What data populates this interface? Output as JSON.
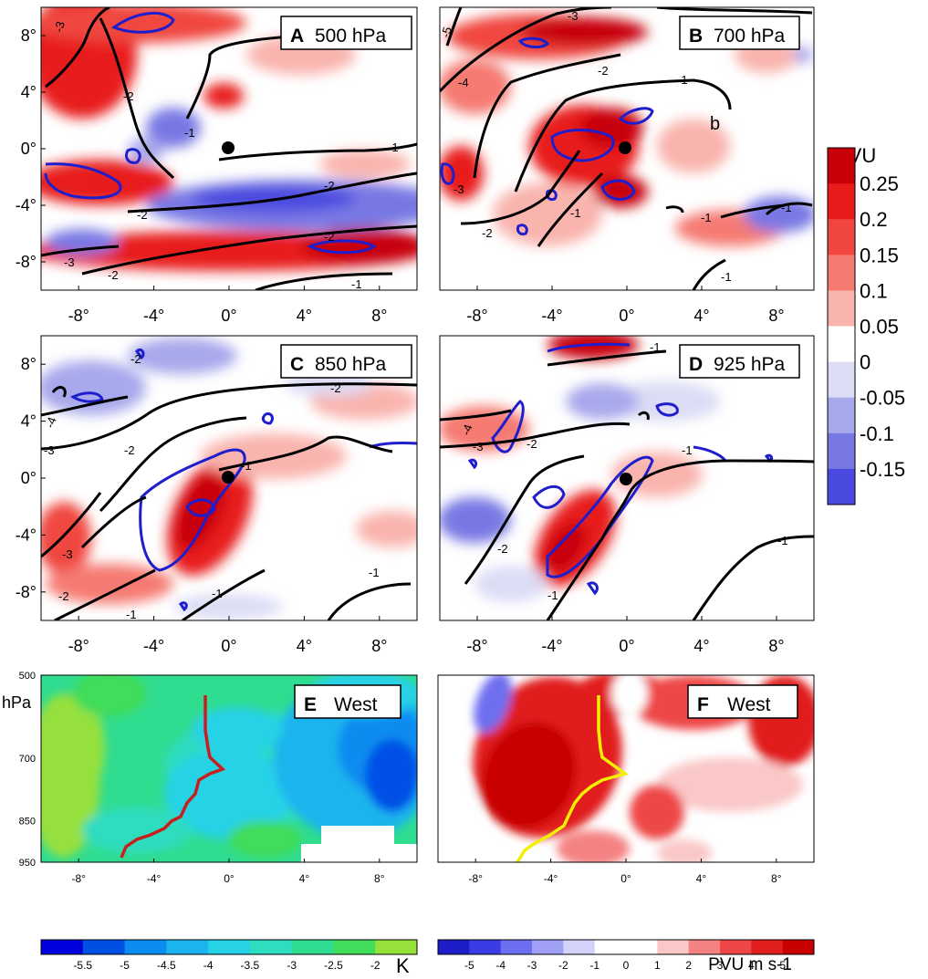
{
  "figure": {
    "panels": [
      {
        "id": "A",
        "letter": "A",
        "level": "500 hPa",
        "extra_label": ""
      },
      {
        "id": "B",
        "letter": "B",
        "level": "700 hPa",
        "extra_label": "b"
      },
      {
        "id": "C",
        "letter": "C",
        "level": "850 hPa",
        "extra_label": ""
      },
      {
        "id": "D",
        "letter": "D",
        "level": "925 hPa",
        "extra_label": ""
      },
      {
        "id": "E",
        "letter": "E",
        "level": "West",
        "extra_label": ""
      },
      {
        "id": "F",
        "letter": "F",
        "level": "West",
        "extra_label": ""
      }
    ],
    "map_x_ticks": [
      "-8°",
      "-4°",
      "0°",
      "4°",
      "8°"
    ],
    "map_y_ticks": [
      "8°",
      "4°",
      "0°",
      "-4°",
      "-8°"
    ],
    "section_x_ticks": [
      "-8°",
      "-4°",
      "0°",
      "4°",
      "8°"
    ],
    "section_y_ticks": [
      "500",
      "700",
      "850",
      "950"
    ],
    "section_y_unit": "hPa",
    "pv_colorbar": {
      "title": "PVU",
      "labels": [
        "0.25",
        "0.2",
        "0.15",
        "0.1",
        "0.05",
        "0",
        "-0.05",
        "-0.1",
        "-0.15"
      ],
      "colors": [
        "#c8000a",
        "#e81a1a",
        "#f0463f",
        "#f57a72",
        "#f9b4ae",
        "#ffffff",
        "#dcdcf5",
        "#a8a8ec",
        "#7878e4",
        "#4a4ae0"
      ]
    },
    "temp_colorbar": {
      "unit": "K",
      "labels": [
        "-5.5",
        "-5",
        "-4.5",
        "-4",
        "-3.5",
        "-3",
        "-2.5",
        "-2"
      ],
      "colors": [
        "#0000dc",
        "#0050e6",
        "#0a8cf0",
        "#1cb4ee",
        "#26d2e6",
        "#2edcc0",
        "#30dc90",
        "#40dc5a",
        "#96e03c"
      ]
    },
    "pvflux_colorbar": {
      "unit": "PVU m s-1",
      "labels": [
        "-5",
        "-4",
        "-3",
        "-2",
        "-1",
        "0",
        "1",
        "2",
        "3",
        "4",
        "5"
      ],
      "colors": [
        "#1e1ec8",
        "#3c3ce6",
        "#6e6ef0",
        "#a0a0f5",
        "#d2d2fa",
        "#ffffff",
        "#ffffff",
        "#fac8c8",
        "#f58282",
        "#ee4646",
        "#e11e1e",
        "#c80000"
      ]
    }
  },
  "chart_data": [
    {
      "type": "heatmap",
      "title": "500 hPa",
      "x_ticks": [
        -8,
        -4,
        0,
        4,
        8
      ],
      "y_ticks": [
        8,
        4,
        0,
        -4,
        -8
      ],
      "xlim": [
        -10,
        10
      ],
      "ylim": [
        -10,
        10
      ],
      "fill": "PV anomaly (PVU)",
      "contour_labels": [
        "-3",
        "-2",
        "-1",
        "-2",
        "-2",
        "-3",
        "-2",
        "-1"
      ]
    },
    {
      "type": "heatmap",
      "title": "700 hPa",
      "x_ticks": [
        -8,
        -4,
        0,
        4,
        8
      ],
      "y_ticks": [
        8,
        4,
        0,
        -4,
        -8
      ],
      "xlim": [
        -10,
        10
      ],
      "ylim": [
        -10,
        10
      ],
      "fill": "PV anomaly (PVU)",
      "contour_labels": [
        "-5",
        "-4",
        "-3",
        "-2",
        "-1",
        "-3",
        "-2",
        "-1",
        "-1",
        "-1",
        "-1"
      ]
    },
    {
      "type": "heatmap",
      "title": "850 hPa",
      "x_ticks": [
        -8,
        -4,
        0,
        4,
        8
      ],
      "y_ticks": [
        8,
        4,
        0,
        -4,
        -8
      ],
      "xlim": [
        -10,
        10
      ],
      "ylim": [
        -10,
        10
      ],
      "fill": "PV anomaly (PVU)",
      "contour_labels": [
        "-2",
        "-4",
        "-3",
        "-2",
        "-1",
        "-3",
        "-2",
        "-1",
        "-1",
        "-1"
      ]
    },
    {
      "type": "heatmap",
      "title": "925 hPa",
      "x_ticks": [
        -8,
        -4,
        0,
        4,
        8
      ],
      "y_ticks": [
        8,
        4,
        0,
        -4,
        -8
      ],
      "xlim": [
        -10,
        10
      ],
      "ylim": [
        -10,
        10
      ],
      "fill": "PV anomaly (PVU)",
      "contour_labels": [
        "-1",
        "-4",
        "-3",
        "-2",
        "-1",
        "-2",
        "-1",
        "-1"
      ]
    },
    {
      "type": "heatmap",
      "title": "West",
      "x_ticks": [
        -8,
        -4,
        0,
        4,
        8
      ],
      "y_ticks": [
        500,
        700,
        850,
        950
      ],
      "y_unit": "hPa",
      "fill": "Temperature anomaly (K)",
      "colorbar_ticks": [
        -5.5,
        -5,
        -4.5,
        -4,
        -3.5,
        -3,
        -2.5,
        -2
      ]
    },
    {
      "type": "heatmap",
      "title": "West",
      "x_ticks": [
        -8,
        -4,
        0,
        4,
        8
      ],
      "y_ticks": [
        500,
        700,
        850,
        950
      ],
      "fill": "PV flux (PVU m s-1)",
      "colorbar_ticks": [
        -5,
        -4,
        -3,
        -2,
        -1,
        0,
        1,
        2,
        3,
        4,
        5
      ]
    }
  ]
}
